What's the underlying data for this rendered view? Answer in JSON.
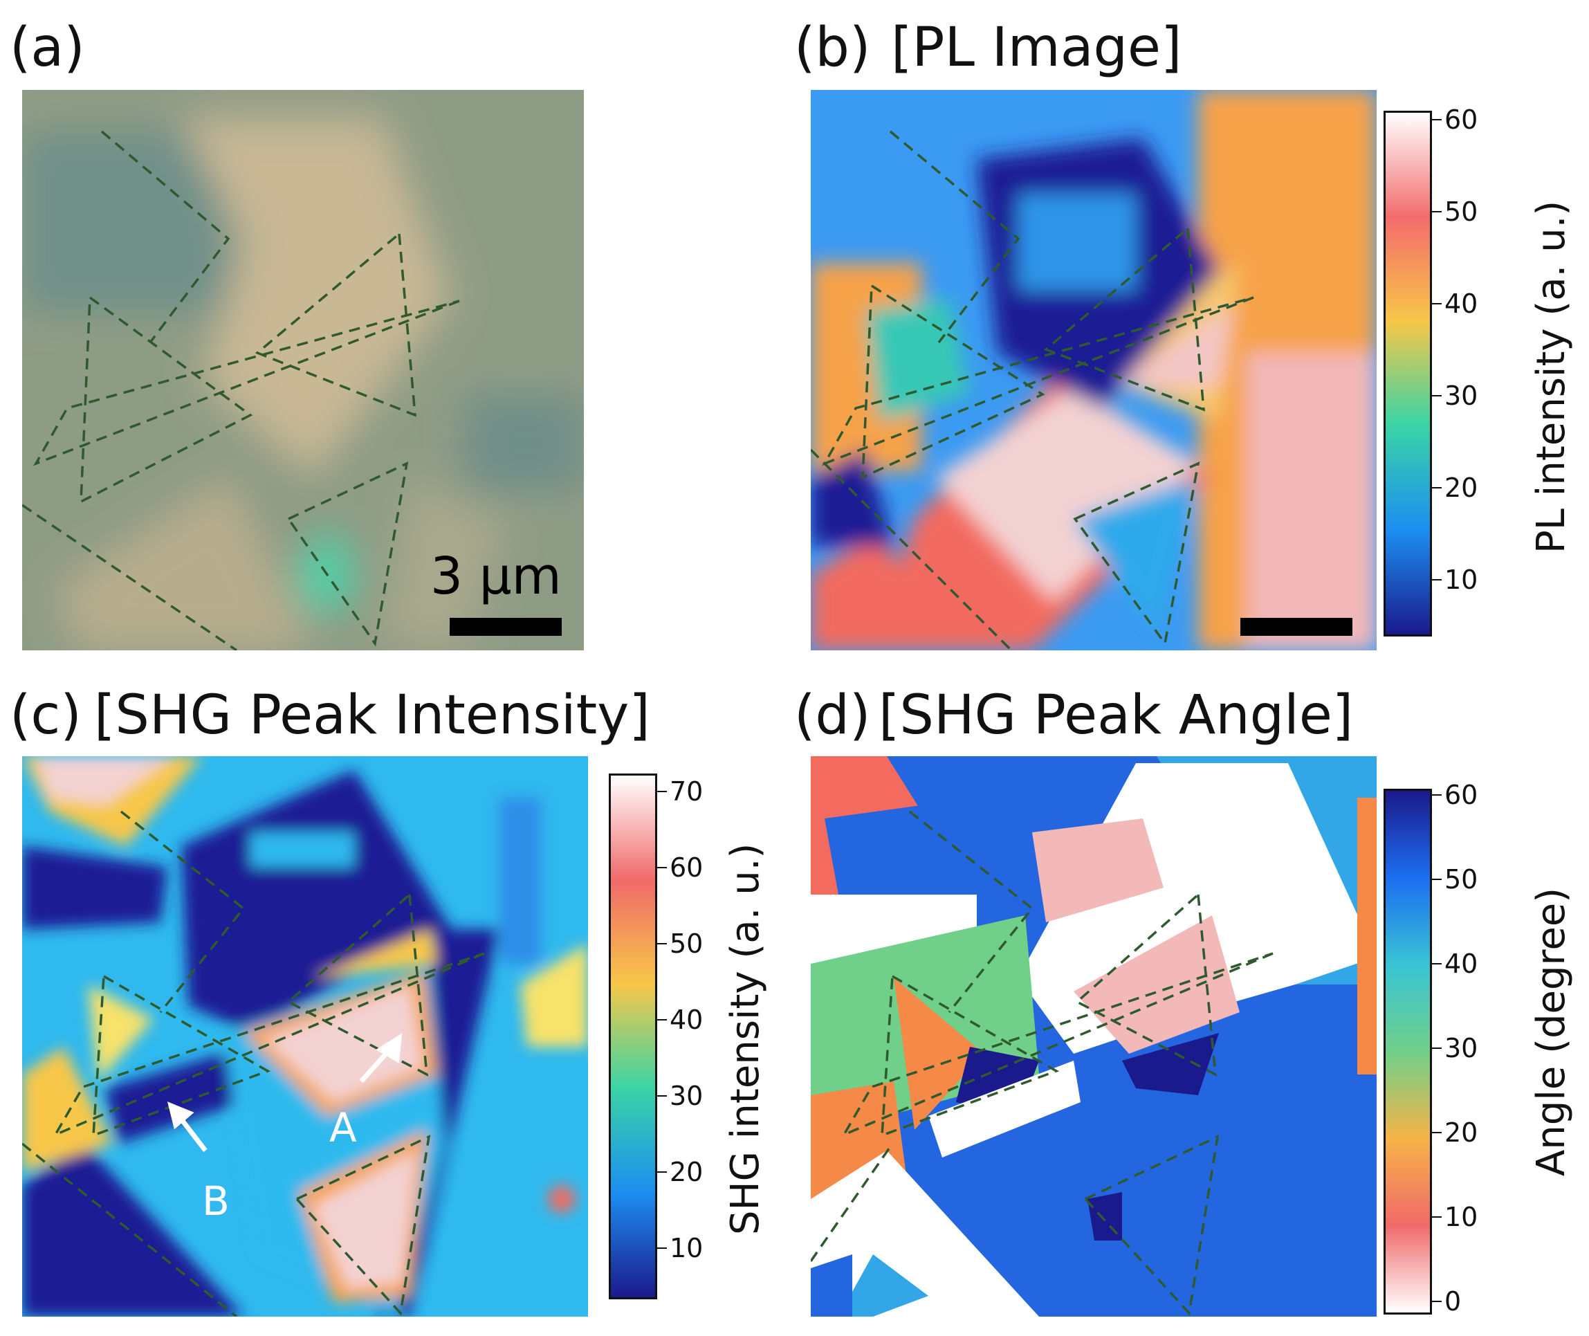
{
  "panels": {
    "a": {
      "label": "(a)",
      "scale_text": "3 μm"
    },
    "b": {
      "label": "(b)",
      "title": "[PL Image]"
    },
    "c": {
      "label": "(c)",
      "title": "[SHG Peak Intensity]",
      "annotations": [
        "A",
        "B"
      ]
    },
    "d": {
      "label": "(d)",
      "title": "[SHG Peak Angle]"
    }
  },
  "colorbars": {
    "pl": {
      "label": "PL intensity (a. u.)",
      "ticks": [
        "60",
        "50",
        "40",
        "30",
        "20",
        "10"
      ],
      "colors": [
        "#ffffff",
        "#f36c6c",
        "#f7c748",
        "#39d4a6",
        "#1c8ef0",
        "#1b1a8c"
      ]
    },
    "shg": {
      "label": "SHG intensity (a. u.)",
      "ticks": [
        "70",
        "60",
        "50",
        "40",
        "30",
        "20",
        "10"
      ],
      "colors": [
        "#ffffff",
        "#f06a6a",
        "#f7c748",
        "#39d4a6",
        "#1c8ef0",
        "#1b1a8c"
      ]
    },
    "angle": {
      "label": "Angle (degree)",
      "ticks": [
        "60",
        "50",
        "40",
        "30",
        "20",
        "10",
        "0"
      ],
      "colors": [
        "#1b1a8c",
        "#1c6ef0",
        "#39c4d4",
        "#70d08a",
        "#f7b348",
        "#f06a6a",
        "#ffffff"
      ]
    }
  },
  "colors": {
    "dashed_outline": "#2f5a2f"
  }
}
